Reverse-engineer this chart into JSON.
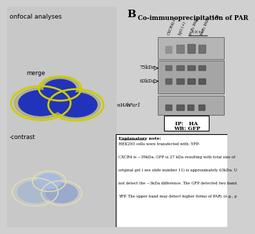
{
  "bg_color": "#d0d0d0",
  "title_B": "B",
  "left_label_top": "onfocal analyses",
  "left_label_merge": "merge",
  "left_label_contrast": "-contrast",
  "col_labels": [
    "CXCR4(+)",
    "IgG (+)",
    "PAR₁ PAR₂",
    "PAR₁ PAR₂"
  ],
  "bracket_label": "(-)(+)",
  "marker_75": "75kDa",
  "marker_63": "63kDa",
  "alpha_label_plain": "αHA- ",
  "alpha_label_italic": "hPar1",
  "ip_line1": "IP:   HA",
  "ip_line2": "WB: GFP",
  "note_title": "Explanatory note:",
  "note_lines": [
    "HEK293 cells were transfected with: YFP-",
    "CXCR4 is ~39kDa, GFP is 27 kDa resulting with total size of",
    "original gel ( see slide number 11) is approximately 63kDa. U",
    "not detect the ~3kDa difference. The GFP detected two band.",
    "YFP. The upper band may detect higher forms of PAR₂ (e.g., p"
  ],
  "title_main": "Co-immunoprecipitation of PAR",
  "title_sub": "₁ aₓ"
}
